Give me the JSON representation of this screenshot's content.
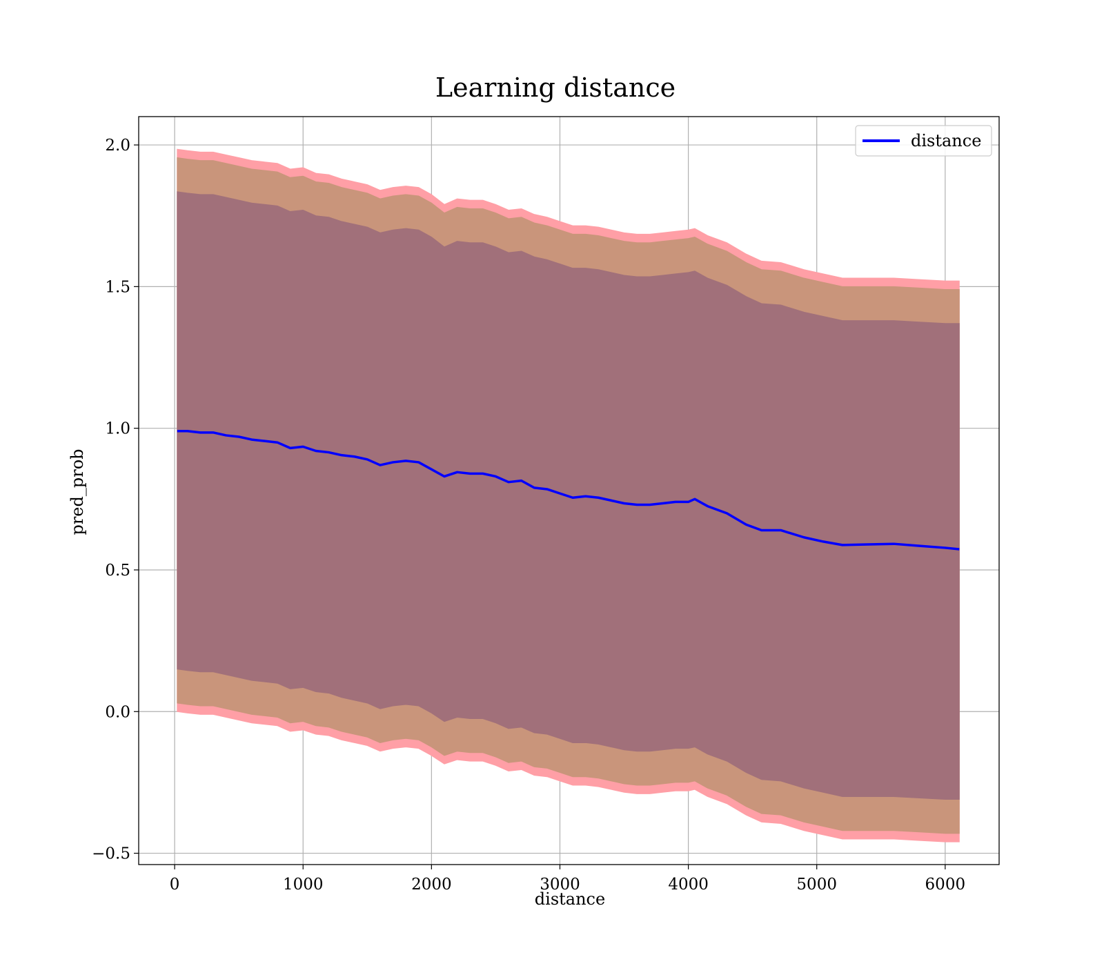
{
  "chart_data": {
    "type": "line",
    "title": "Learning distance",
    "xlabel": "distance",
    "ylabel": "pred_prob",
    "xlim": [
      -280,
      6420
    ],
    "ylim": [
      -0.54,
      2.1
    ],
    "xticks": [
      0,
      1000,
      2000,
      3000,
      4000,
      5000,
      6000
    ],
    "yticks": [
      -0.5,
      0.0,
      0.5,
      1.0,
      1.5,
      2.0
    ],
    "xtick_labels": [
      "0",
      "1000",
      "2000",
      "3000",
      "4000",
      "5000",
      "6000"
    ],
    "ytick_labels": [
      "−0.5",
      "0.0",
      "0.5",
      "1.0",
      "1.5",
      "2.0"
    ],
    "grid": true,
    "legend": {
      "position": "top-right",
      "entries": [
        "distance"
      ]
    },
    "colors": {
      "line": "#0000ff",
      "band_outer": "#ff9fa6",
      "band_middle": "#c9957b",
      "band_inner": "#a1707a"
    },
    "series": [
      {
        "name": "distance",
        "x": [
          20,
          100,
          200,
          300,
          400,
          500,
          600,
          700,
          800,
          900,
          1000,
          1100,
          1200,
          1300,
          1400,
          1500,
          1600,
          1700,
          1800,
          1900,
          2000,
          2100,
          2200,
          2300,
          2400,
          2500,
          2600,
          2700,
          2800,
          2900,
          3000,
          3100,
          3200,
          3300,
          3400,
          3500,
          3600,
          3700,
          3800,
          3900,
          4000,
          4050,
          4150,
          4300,
          4450,
          4570,
          4720,
          4900,
          5050,
          5200,
          5400,
          5600,
          5800,
          6000,
          6110
        ],
        "values": [
          0.99,
          0.99,
          0.985,
          0.985,
          0.975,
          0.97,
          0.96,
          0.955,
          0.95,
          0.93,
          0.935,
          0.92,
          0.915,
          0.905,
          0.9,
          0.89,
          0.87,
          0.88,
          0.885,
          0.88,
          0.855,
          0.83,
          0.845,
          0.84,
          0.84,
          0.83,
          0.81,
          0.815,
          0.79,
          0.785,
          0.77,
          0.755,
          0.76,
          0.755,
          0.745,
          0.735,
          0.73,
          0.73,
          0.735,
          0.74,
          0.74,
          0.75,
          0.725,
          0.7,
          0.66,
          0.64,
          0.64,
          0.615,
          0.6,
          0.588,
          0.59,
          0.592,
          0.585,
          0.578,
          0.573
        ]
      }
    ],
    "bands": [
      {
        "x": [
          20,
          100,
          200,
          300,
          400,
          500,
          600,
          700,
          800,
          900,
          1000,
          1100,
          1200,
          1300,
          1400,
          1500,
          1600,
          1700,
          1800,
          1900,
          2000,
          2100,
          2200,
          2300,
          2400,
          2500,
          2600,
          2700,
          2800,
          2900,
          3000,
          3100,
          3200,
          3300,
          3400,
          3500,
          3600,
          3700,
          3800,
          3900,
          4000,
          4050,
          4150,
          4300,
          4450,
          4570,
          4720,
          4900,
          5050,
          5200,
          5400,
          5600,
          5800,
          6000,
          6110
        ],
        "upper": [
          1.985,
          1.98,
          1.975,
          1.975,
          1.965,
          1.955,
          1.945,
          1.94,
          1.935,
          1.915,
          1.92,
          1.9,
          1.895,
          1.88,
          1.87,
          1.86,
          1.84,
          1.85,
          1.855,
          1.85,
          1.825,
          1.79,
          1.81,
          1.805,
          1.805,
          1.79,
          1.77,
          1.775,
          1.755,
          1.745,
          1.73,
          1.715,
          1.715,
          1.71,
          1.7,
          1.69,
          1.685,
          1.685,
          1.69,
          1.695,
          1.7,
          1.705,
          1.68,
          1.655,
          1.615,
          1.59,
          1.585,
          1.56,
          1.545,
          1.53,
          1.53,
          1.53,
          1.525,
          1.52,
          1.52
        ],
        "lower": [
          0.0,
          -0.005,
          -0.01,
          -0.01,
          -0.02,
          -0.03,
          -0.04,
          -0.045,
          -0.05,
          -0.07,
          -0.065,
          -0.08,
          -0.085,
          -0.1,
          -0.11,
          -0.12,
          -0.14,
          -0.13,
          -0.125,
          -0.13,
          -0.155,
          -0.185,
          -0.17,
          -0.175,
          -0.175,
          -0.19,
          -0.21,
          -0.205,
          -0.225,
          -0.23,
          -0.245,
          -0.26,
          -0.26,
          -0.265,
          -0.275,
          -0.285,
          -0.29,
          -0.29,
          -0.285,
          -0.28,
          -0.28,
          -0.275,
          -0.3,
          -0.325,
          -0.365,
          -0.39,
          -0.395,
          -0.42,
          -0.435,
          -0.45,
          -0.45,
          -0.45,
          -0.455,
          -0.46,
          -0.46
        ]
      },
      {
        "x": [
          20,
          100,
          200,
          300,
          400,
          500,
          600,
          700,
          800,
          900,
          1000,
          1100,
          1200,
          1300,
          1400,
          1500,
          1600,
          1700,
          1800,
          1900,
          2000,
          2100,
          2200,
          2300,
          2400,
          2500,
          2600,
          2700,
          2800,
          2900,
          3000,
          3100,
          3200,
          3300,
          3400,
          3500,
          3600,
          3700,
          3800,
          3900,
          4000,
          4050,
          4150,
          4300,
          4450,
          4570,
          4720,
          4900,
          5050,
          5200,
          5400,
          5600,
          5800,
          6000,
          6110
        ],
        "upper": [
          1.955,
          1.95,
          1.945,
          1.945,
          1.935,
          1.925,
          1.915,
          1.91,
          1.905,
          1.885,
          1.89,
          1.87,
          1.865,
          1.85,
          1.84,
          1.83,
          1.81,
          1.82,
          1.825,
          1.82,
          1.795,
          1.76,
          1.78,
          1.775,
          1.775,
          1.76,
          1.74,
          1.745,
          1.725,
          1.715,
          1.7,
          1.685,
          1.685,
          1.68,
          1.67,
          1.66,
          1.655,
          1.655,
          1.66,
          1.665,
          1.67,
          1.675,
          1.65,
          1.625,
          1.585,
          1.56,
          1.555,
          1.53,
          1.515,
          1.5,
          1.5,
          1.5,
          1.495,
          1.49,
          1.49
        ],
        "lower": [
          0.03,
          0.025,
          0.02,
          0.02,
          0.01,
          0.0,
          -0.01,
          -0.015,
          -0.02,
          -0.04,
          -0.035,
          -0.05,
          -0.055,
          -0.07,
          -0.08,
          -0.09,
          -0.11,
          -0.1,
          -0.095,
          -0.1,
          -0.125,
          -0.155,
          -0.14,
          -0.145,
          -0.145,
          -0.16,
          -0.18,
          -0.175,
          -0.195,
          -0.2,
          -0.215,
          -0.23,
          -0.23,
          -0.235,
          -0.245,
          -0.255,
          -0.26,
          -0.26,
          -0.255,
          -0.25,
          -0.25,
          -0.245,
          -0.27,
          -0.295,
          -0.335,
          -0.36,
          -0.365,
          -0.39,
          -0.405,
          -0.42,
          -0.42,
          -0.42,
          -0.425,
          -0.43,
          -0.43
        ]
      },
      {
        "x": [
          20,
          100,
          200,
          300,
          400,
          500,
          600,
          700,
          800,
          900,
          1000,
          1100,
          1200,
          1300,
          1400,
          1500,
          1600,
          1700,
          1800,
          1900,
          2000,
          2100,
          2200,
          2300,
          2400,
          2500,
          2600,
          2700,
          2800,
          2900,
          3000,
          3100,
          3200,
          3300,
          3400,
          3500,
          3600,
          3700,
          3800,
          3900,
          4000,
          4050,
          4150,
          4300,
          4450,
          4570,
          4720,
          4900,
          5050,
          5200,
          5400,
          5600,
          5800,
          6000,
          6110
        ],
        "upper": [
          1.835,
          1.83,
          1.825,
          1.825,
          1.815,
          1.805,
          1.795,
          1.79,
          1.785,
          1.765,
          1.77,
          1.75,
          1.745,
          1.73,
          1.72,
          1.71,
          1.69,
          1.7,
          1.705,
          1.7,
          1.675,
          1.64,
          1.66,
          1.655,
          1.655,
          1.64,
          1.62,
          1.625,
          1.605,
          1.595,
          1.58,
          1.565,
          1.565,
          1.56,
          1.55,
          1.54,
          1.535,
          1.535,
          1.54,
          1.545,
          1.55,
          1.555,
          1.53,
          1.505,
          1.465,
          1.44,
          1.435,
          1.41,
          1.395,
          1.38,
          1.38,
          1.38,
          1.375,
          1.37,
          1.37
        ],
        "lower": [
          0.15,
          0.145,
          0.14,
          0.14,
          0.13,
          0.12,
          0.11,
          0.105,
          0.1,
          0.08,
          0.085,
          0.07,
          0.065,
          0.05,
          0.04,
          0.03,
          0.01,
          0.02,
          0.025,
          0.02,
          -0.005,
          -0.035,
          -0.02,
          -0.025,
          -0.025,
          -0.04,
          -0.06,
          -0.055,
          -0.075,
          -0.08,
          -0.095,
          -0.11,
          -0.11,
          -0.115,
          -0.125,
          -0.135,
          -0.14,
          -0.14,
          -0.135,
          -0.13,
          -0.13,
          -0.125,
          -0.15,
          -0.175,
          -0.215,
          -0.24,
          -0.245,
          -0.27,
          -0.285,
          -0.3,
          -0.3,
          -0.3,
          -0.305,
          -0.31,
          -0.31
        ]
      }
    ]
  }
}
